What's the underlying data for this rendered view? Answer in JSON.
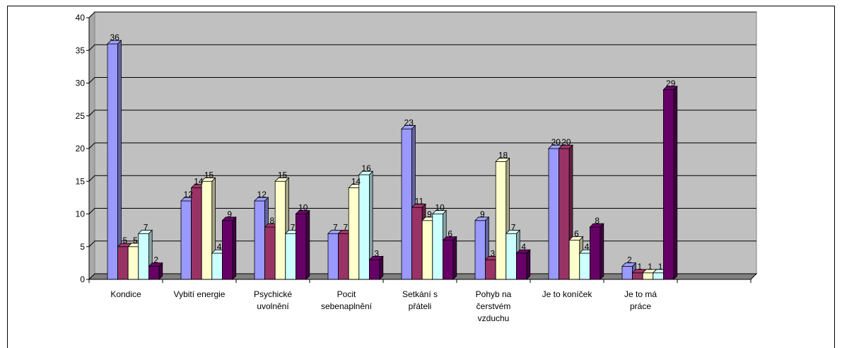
{
  "chart_data": {
    "type": "bar",
    "title": "",
    "xlabel": "",
    "ylabel": "",
    "ylim": [
      0,
      40
    ],
    "yticks": [
      0,
      5,
      10,
      15,
      20,
      25,
      30,
      35,
      40
    ],
    "grid": true,
    "categories": [
      [
        "Kondice"
      ],
      [
        "Vybití energie"
      ],
      [
        "Psychické",
        "uvolnění"
      ],
      [
        "Pocit",
        "sebenaplnění"
      ],
      [
        "Setkání s",
        "přáteli"
      ],
      [
        "Pohyb na",
        "čerstvém",
        "vzduchu"
      ],
      [
        "Je to koníček"
      ],
      [
        "Je to má",
        "práce"
      ]
    ],
    "series": [
      {
        "values": [
          36,
          12,
          12,
          7,
          23,
          9,
          20,
          2
        ],
        "color": "#9999ff"
      },
      {
        "values": [
          5,
          14,
          8,
          7,
          11,
          3,
          20,
          1
        ],
        "color": "#993366"
      },
      {
        "values": [
          5,
          15,
          15,
          14,
          9,
          18,
          6,
          1
        ],
        "color": "#ffffcc"
      },
      {
        "values": [
          7,
          4,
          7,
          16,
          10,
          7,
          4,
          1
        ],
        "color": "#ccffff"
      },
      {
        "values": [
          2,
          9,
          10,
          3,
          6,
          4,
          8,
          29
        ],
        "color": "#660066"
      }
    ],
    "plot_background": "#c0c0c0"
  }
}
